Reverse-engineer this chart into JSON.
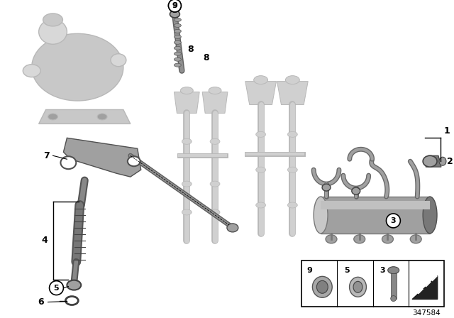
{
  "bg": "#ffffff",
  "black": "#000000",
  "gray1": "#c8c8c8",
  "gray2": "#a0a0a0",
  "gray3": "#787878",
  "gray4": "#d8d8d8",
  "gray5": "#b4b4b4",
  "ghost": "#d0d0d0",
  "ghost_edge": "#b8b8b8",
  "ref": "347584",
  "figsize": [
    6.4,
    4.48
  ],
  "dpi": 100
}
